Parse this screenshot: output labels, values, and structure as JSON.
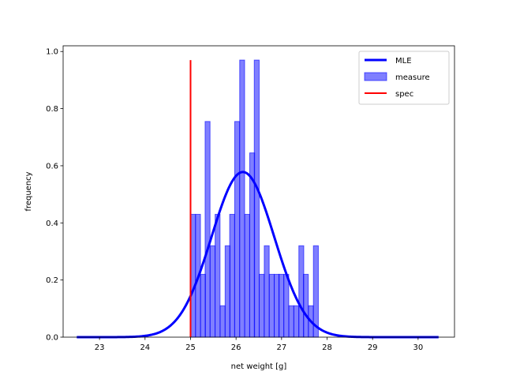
{
  "chart_data": {
    "type": "bar",
    "title": "",
    "xlabel": "net weight [g]",
    "ylabel": "frequency",
    "xlim": [
      22.2,
      30.8
    ],
    "ylim": [
      0,
      1.02
    ],
    "xticks": [
      23,
      24,
      25,
      26,
      27,
      28,
      29,
      30
    ],
    "yticks": [
      0.0,
      0.2,
      0.4,
      0.6,
      0.8,
      1.0
    ],
    "grid": false,
    "legend_position": "top-right",
    "histogram": {
      "name": "measure",
      "color": "#0000ff",
      "bin_width": 0.108,
      "bins": [
        {
          "x": 25.0,
          "y": 0.43
        },
        {
          "x": 25.11,
          "y": 0.43
        },
        {
          "x": 25.22,
          "y": 0.22
        },
        {
          "x": 25.32,
          "y": 0.755
        },
        {
          "x": 25.43,
          "y": 0.32
        },
        {
          "x": 25.54,
          "y": 0.43
        },
        {
          "x": 25.65,
          "y": 0.11
        },
        {
          "x": 25.76,
          "y": 0.32
        },
        {
          "x": 25.86,
          "y": 0.43
        },
        {
          "x": 25.97,
          "y": 0.755
        },
        {
          "x": 26.08,
          "y": 0.97
        },
        {
          "x": 26.19,
          "y": 0.43
        },
        {
          "x": 26.3,
          "y": 0.645
        },
        {
          "x": 26.4,
          "y": 0.97
        },
        {
          "x": 26.51,
          "y": 0.22
        },
        {
          "x": 26.62,
          "y": 0.32
        },
        {
          "x": 26.73,
          "y": 0.22
        },
        {
          "x": 26.84,
          "y": 0.22
        },
        {
          "x": 26.94,
          "y": 0.22
        },
        {
          "x": 27.05,
          "y": 0.22
        },
        {
          "x": 27.16,
          "y": 0.11
        },
        {
          "x": 27.27,
          "y": 0.11
        },
        {
          "x": 27.38,
          "y": 0.32
        },
        {
          "x": 27.48,
          "y": 0.22
        },
        {
          "x": 27.59,
          "y": 0.11
        },
        {
          "x": 27.7,
          "y": 0.32
        }
      ]
    },
    "mle_curve": {
      "name": "MLE",
      "color": "#0000ff",
      "x_range": [
        22.5,
        30.45
      ],
      "mean": 26.15,
      "sd": 0.69
    },
    "spec_line": {
      "name": "spec",
      "color": "#ff0000",
      "x": 25.0,
      "y_range": [
        0,
        0.97
      ]
    },
    "legend": [
      "MLE",
      "measure",
      "spec"
    ]
  }
}
